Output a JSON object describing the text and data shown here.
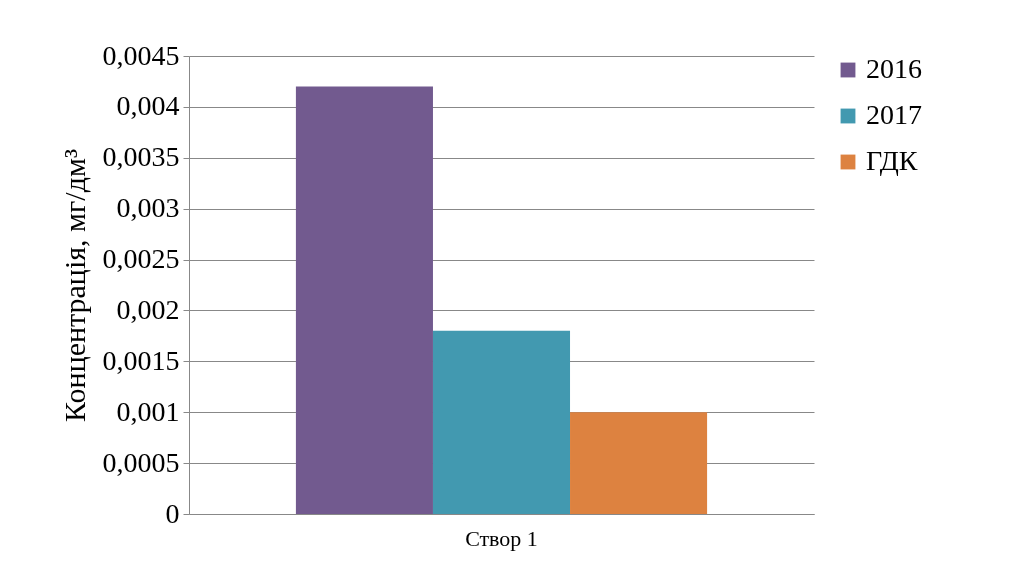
{
  "chart_data": {
    "type": "bar",
    "ylabel": "Концентрація, мг/дм³",
    "categories": [
      "Створ 1"
    ],
    "series": [
      {
        "name": "2016",
        "color": "#725a8f",
        "values": [
          0.0042
        ]
      },
      {
        "name": "2017",
        "color": "#4299b0",
        "values": [
          0.0018
        ]
      },
      {
        "name": "ГДК",
        "color": "#dd8240",
        "values": [
          0.001
        ]
      }
    ],
    "ylim": [
      0,
      0.0045
    ],
    "yticks": [
      {
        "value": 0,
        "label": "0"
      },
      {
        "value": 0.0005,
        "label": "0,0005"
      },
      {
        "value": 0.001,
        "label": "0,001"
      },
      {
        "value": 0.0015,
        "label": "0,0015"
      },
      {
        "value": 0.002,
        "label": "0,002"
      },
      {
        "value": 0.0025,
        "label": "0,0025"
      },
      {
        "value": 0.003,
        "label": "0,003"
      },
      {
        "value": 0.0035,
        "label": "0,0035"
      },
      {
        "value": 0.004,
        "label": "0,004"
      },
      {
        "value": 0.0045,
        "label": "0,0045"
      }
    ],
    "grid": "y",
    "legend": "right"
  }
}
